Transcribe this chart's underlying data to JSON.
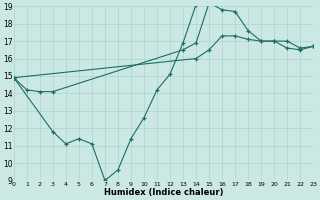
{
  "xlabel": "Humidex (Indice chaleur)",
  "bg_color": "#cce8e4",
  "grid_color": "#aad4cc",
  "line_color": "#1a6e62",
  "xmin": 0,
  "xmax": 23,
  "ymin": 9,
  "ymax": 19,
  "curveA_x": [
    0,
    1,
    2,
    3,
    13,
    14,
    15,
    16,
    17,
    18,
    19,
    20,
    21,
    22,
    23
  ],
  "curveA_y": [
    14.9,
    14.2,
    14.1,
    14.1,
    16.5,
    16.9,
    19.2,
    18.8,
    18.7,
    17.6,
    17.0,
    17.0,
    16.6,
    16.5,
    16.7
  ],
  "curveB_x": [
    0,
    3,
    4,
    5,
    6,
    7,
    8,
    9,
    10,
    11,
    12,
    13,
    14,
    15
  ],
  "curveB_y": [
    14.9,
    11.8,
    11.1,
    11.4,
    11.1,
    9.0,
    9.6,
    11.4,
    12.6,
    14.2,
    15.1,
    16.9,
    19.1,
    19.3
  ],
  "curveC_x": [
    0,
    14,
    15,
    16,
    17,
    18,
    19,
    20,
    21,
    22,
    23
  ],
  "curveC_y": [
    14.9,
    16.0,
    16.5,
    17.3,
    17.3,
    17.1,
    17.0,
    17.0,
    17.0,
    16.6,
    16.7
  ]
}
